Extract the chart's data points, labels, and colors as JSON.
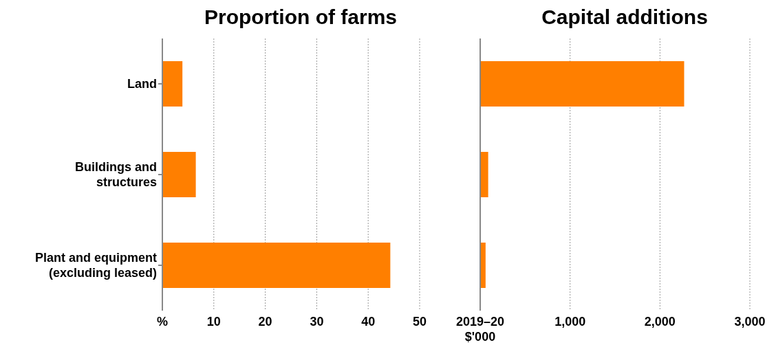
{
  "chart_data": [
    {
      "type": "bar",
      "orientation": "horizontal",
      "title": "Proportion of farms",
      "categories": [
        "Land",
        "Buildings and\nstructures",
        "Plant and equipment\n(excluding leased)"
      ],
      "values": [
        3.9,
        6.5,
        44.3
      ],
      "color": "#ff7f00",
      "xlim": [
        0,
        50
      ],
      "xticks": [
        {
          "value": 0,
          "label": "%"
        },
        10,
        20,
        30,
        40,
        50
      ],
      "grid": "x"
    },
    {
      "type": "bar",
      "orientation": "horizontal",
      "title": "Capital additions",
      "categories": [
        null,
        null,
        null
      ],
      "values": [
        2269,
        89,
        60
      ],
      "color": "#ff7f00",
      "xlim": [
        0,
        3000
      ],
      "xticks": [
        {
          "value": 0,
          "label": "2019–20\n$'000"
        },
        {
          "value": 1000,
          "label": "1,000"
        },
        {
          "value": 2000,
          "label": "2,000"
        },
        {
          "value": 3000,
          "label": "3,000"
        }
      ],
      "grid": "x",
      "tick_labels": "x"
    }
  ]
}
